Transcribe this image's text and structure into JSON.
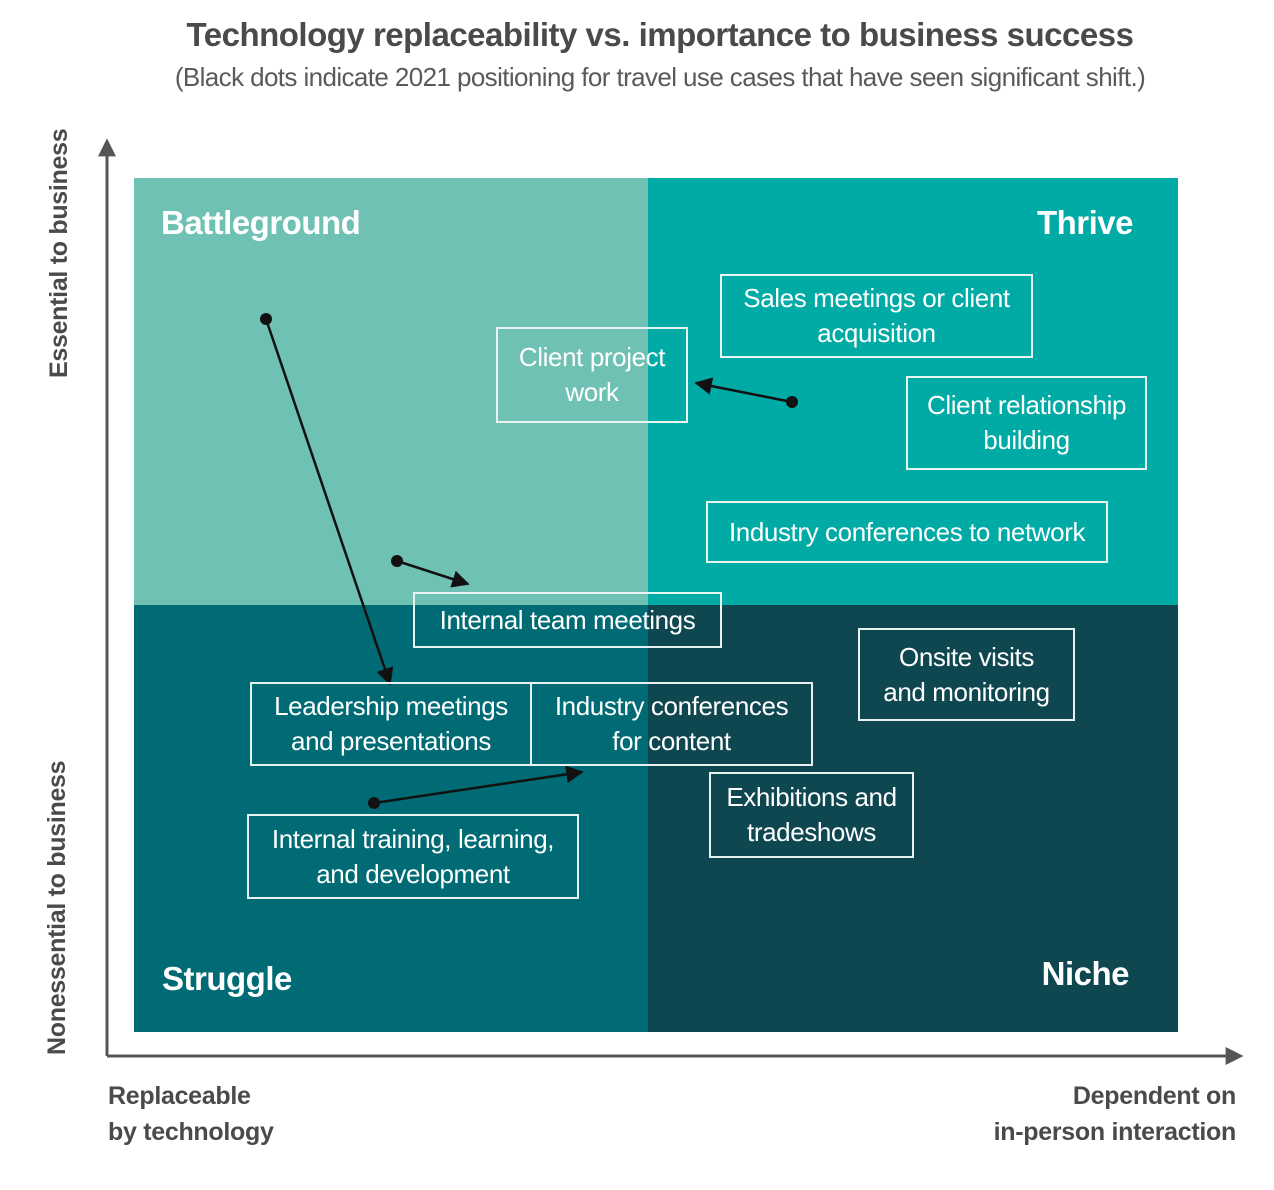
{
  "title": "Technology replaceability vs. importance to business success",
  "subtitle": "(Black dots indicate 2021 positioning for travel use cases that have seen significant shift.)",
  "axes": {
    "y_top": "Essential to business",
    "y_bottom": "Nonessential to business",
    "x_left_line1": "Replaceable",
    "x_left_line2": "by technology",
    "x_right_line1": "Dependent on",
    "x_right_line2": "in-person interaction"
  },
  "quadrants": {
    "top_left": "Battleground",
    "top_right": "Thrive",
    "bottom_left": "Struggle",
    "bottom_right": "Niche"
  },
  "colors": {
    "top_left": "#6fc1b3",
    "top_right": "#00aaa5",
    "bottom_left": "#006b74",
    "bottom_right": "#0e4750",
    "axis": "#555555",
    "arrow": "#111111"
  },
  "use_cases": {
    "sales": {
      "line1": "Sales meetings or client",
      "line2": "acquisition"
    },
    "client_project": {
      "line1": "Client project",
      "line2": "work"
    },
    "client_relationship": {
      "line1": "Client relationship",
      "line2": "building"
    },
    "conferences_network": {
      "line1": "Industry conferences to network"
    },
    "internal_team": {
      "line1": "Internal team meetings"
    },
    "onsite": {
      "line1": "Onsite visits",
      "line2": "and monitoring"
    },
    "leadership": {
      "line1": "Leadership meetings",
      "line2": "and presentations"
    },
    "conferences_content": {
      "line1": "Industry conferences",
      "line2": "for content"
    },
    "exhibitions": {
      "line1": "Exhibitions and",
      "line2": "tradeshows"
    },
    "training": {
      "line1": "Internal training, learning,",
      "line2": "and development"
    }
  }
}
